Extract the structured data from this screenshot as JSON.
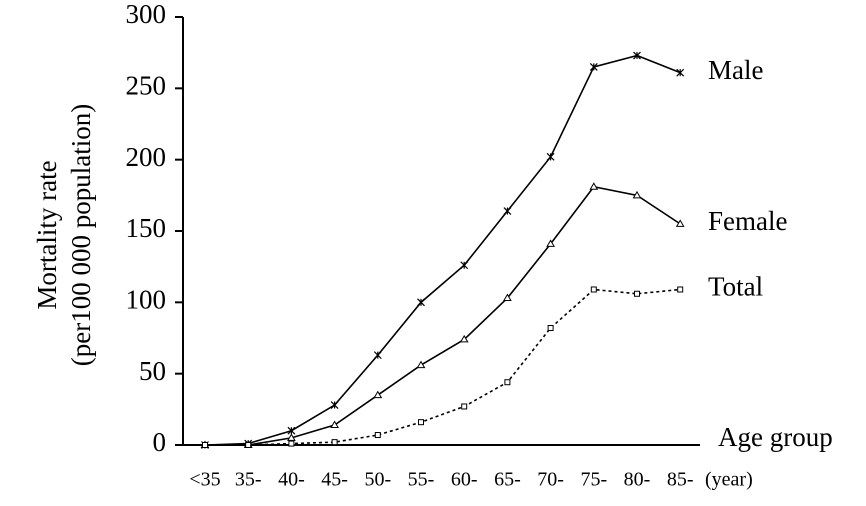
{
  "chart_data": {
    "type": "line",
    "ylabel": [
      "Mortality rate",
      "(per100 000 population)"
    ],
    "xlabel": "Age group",
    "xunit": "(year)",
    "categories": [
      "<35",
      "35-",
      "40-",
      "45-",
      "50-",
      "55-",
      "60-",
      "65-",
      "70-",
      "75-",
      "80-",
      "85-"
    ],
    "series": [
      {
        "name": "Male",
        "color": "#000000",
        "marker": "star",
        "dashed": false,
        "values": [
          0,
          1,
          10,
          28,
          63,
          100,
          126,
          164,
          202,
          265,
          273,
          261
        ]
      },
      {
        "name": "Female",
        "color": "#000000",
        "marker": "triangle",
        "dashed": false,
        "values": [
          0,
          0,
          5,
          14,
          35,
          56,
          74,
          103,
          141,
          181,
          175,
          155
        ]
      },
      {
        "name": "Total",
        "color": "#000000",
        "marker": "square",
        "dashed": true,
        "values": [
          0,
          0,
          1,
          2,
          7,
          16,
          27,
          44,
          82,
          109,
          106,
          109
        ]
      }
    ],
    "ylim": [
      0,
      300
    ],
    "yticks": [
      0,
      50,
      100,
      150,
      200,
      250,
      300
    ],
    "grid": false
  }
}
